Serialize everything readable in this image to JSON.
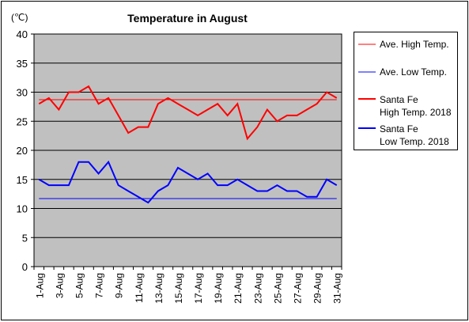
{
  "chart_data": {
    "type": "line",
    "title": "Temperature in August",
    "unit_label": "(℃)",
    "ylim": [
      0,
      40
    ],
    "yticks": [
      0,
      5,
      10,
      15,
      20,
      25,
      30,
      35,
      40
    ],
    "grid": true,
    "legend_position": "right",
    "x": [
      "1-Aug",
      "2-Aug",
      "3-Aug",
      "4-Aug",
      "5-Aug",
      "6-Aug",
      "7-Aug",
      "8-Aug",
      "9-Aug",
      "10-Aug",
      "11-Aug",
      "12-Aug",
      "13-Aug",
      "14-Aug",
      "15-Aug",
      "16-Aug",
      "17-Aug",
      "18-Aug",
      "19-Aug",
      "20-Aug",
      "21-Aug",
      "22-Aug",
      "23-Aug",
      "24-Aug",
      "25-Aug",
      "26-Aug",
      "27-Aug",
      "28-Aug",
      "29-Aug",
      "30-Aug",
      "31-Aug"
    ],
    "x_tick_labels": [
      "1-Aug",
      "3-Aug",
      "5-Aug",
      "7-Aug",
      "9-Aug",
      "11-Aug",
      "13-Aug",
      "15-Aug",
      "17-Aug",
      "19-Aug",
      "21-Aug",
      "23-Aug",
      "25-Aug",
      "27-Aug",
      "29-Aug",
      "31-Aug"
    ],
    "series": [
      {
        "name": "Ave. High Temp.",
        "style": "reference",
        "color": "#ff0000",
        "values": [
          28.7,
          28.7,
          28.7,
          28.7,
          28.7,
          28.7,
          28.7,
          28.7,
          28.7,
          28.7,
          28.7,
          28.7,
          28.7,
          28.7,
          28.7,
          28.7,
          28.7,
          28.7,
          28.7,
          28.7,
          28.7,
          28.7,
          28.7,
          28.7,
          28.7,
          28.7,
          28.7,
          28.7,
          28.7,
          28.7,
          28.7
        ]
      },
      {
        "name": "Ave. Low Temp.",
        "style": "reference",
        "color": "#0000ff",
        "values": [
          11.7,
          11.7,
          11.7,
          11.7,
          11.7,
          11.7,
          11.7,
          11.7,
          11.7,
          11.7,
          11.7,
          11.7,
          11.7,
          11.7,
          11.7,
          11.7,
          11.7,
          11.7,
          11.7,
          11.7,
          11.7,
          11.7,
          11.7,
          11.7,
          11.7,
          11.7,
          11.7,
          11.7,
          11.7,
          11.7,
          11.7
        ]
      },
      {
        "name": "Santa Fe\nHigh Temp. 2018",
        "style": "bold",
        "color": "#ff0000",
        "values": [
          28,
          29,
          27,
          30,
          30,
          31,
          28,
          29,
          26,
          23,
          24,
          24,
          28,
          29,
          28,
          27,
          26,
          27,
          28,
          26,
          28,
          22,
          24,
          27,
          25,
          26,
          26,
          27,
          28,
          30,
          29
        ]
      },
      {
        "name": "Santa Fe\nLow Temp. 2018",
        "style": "bold",
        "color": "#0000ff",
        "values": [
          15,
          14,
          14,
          14,
          18,
          18,
          16,
          18,
          14,
          13,
          12,
          11,
          13,
          14,
          17,
          16,
          15,
          16,
          14,
          14,
          15,
          14,
          13,
          13,
          14,
          13,
          13,
          12,
          12,
          15,
          14
        ]
      }
    ]
  }
}
